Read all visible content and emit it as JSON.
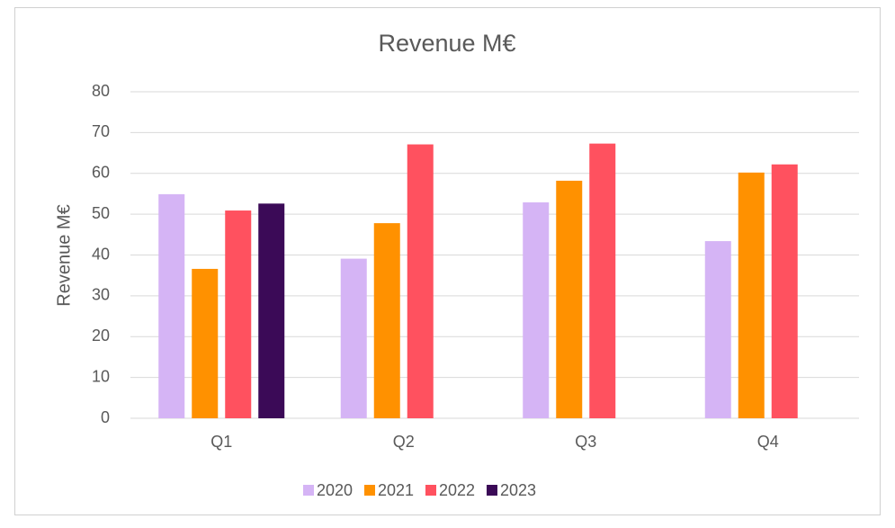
{
  "chart_data": {
    "type": "bar",
    "title": "Revenue M€",
    "y_label": "Revenue M€",
    "categories": [
      "Q1",
      "Q2",
      "Q3",
      "Q4"
    ],
    "series": [
      {
        "name": "2020",
        "color": "#d5b4f5",
        "values": [
          54.9,
          39.1,
          52.9,
          43.4
        ]
      },
      {
        "name": "2021",
        "color": "#ff9100",
        "values": [
          36.6,
          47.8,
          58.2,
          60.2
        ]
      },
      {
        "name": "2022",
        "color": "#ff515f",
        "values": [
          50.9,
          67.1,
          67.3,
          62.2
        ]
      },
      {
        "name": "2023",
        "color": "#3b0a57",
        "values": [
          52.6,
          null,
          null,
          null
        ]
      }
    ],
    "ylim": [
      0,
      80
    ],
    "yticks": [
      0,
      10,
      20,
      30,
      40,
      50,
      60,
      70,
      80
    ],
    "grid": true,
    "legend": "bottom"
  }
}
